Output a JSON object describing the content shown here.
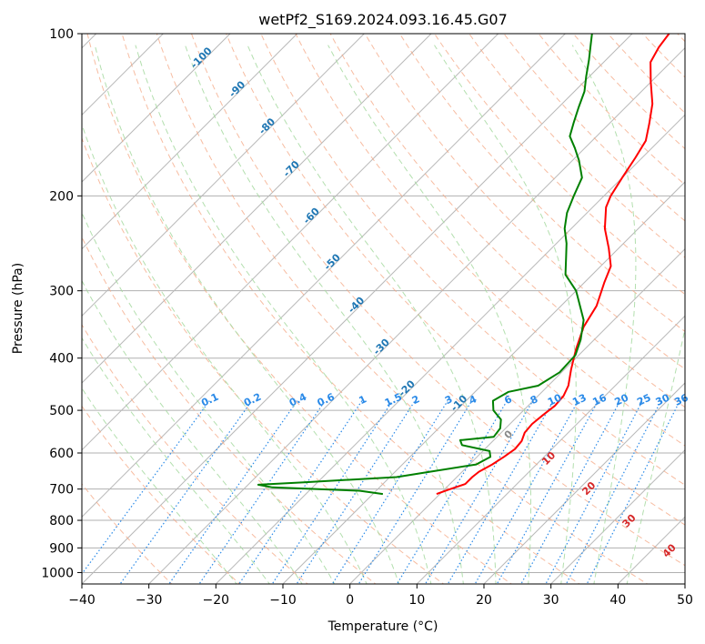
{
  "chart_data": {
    "type": "skew-t log-p",
    "title": "wetPf2_S169.2024.093.16.45.G07",
    "xlabel": "Temperature (°C)",
    "ylabel": "Pressure (hPa)",
    "xlim": [
      -40,
      50
    ],
    "ylim": [
      1050,
      100
    ],
    "y_scale": "log",
    "grid": true,
    "x_ticks": [
      -40,
      -30,
      -20,
      -10,
      0,
      10,
      20,
      30,
      40,
      50
    ],
    "y_ticks": [
      100,
      200,
      300,
      400,
      500,
      600,
      700,
      800,
      900,
      1000
    ],
    "colors": {
      "temperature": "#ff0000",
      "dewpoint": "#008000",
      "isotherm_labels": "#1f77b4",
      "mixing_ratio_labels": "#2a8ae8",
      "wet_bulb_labels": "#d62728",
      "dry_adiabats": "#f4a582",
      "moist_adiabats": "#a6d9a0"
    },
    "series": [
      {
        "name": "Temperature",
        "points": [
          [
            -0.5,
            715
          ],
          [
            0.8,
            700
          ],
          [
            2.3,
            685
          ],
          [
            2.3,
            665
          ],
          [
            2.5,
            650
          ],
          [
            3.4,
            630
          ],
          [
            4.0,
            610
          ],
          [
            4.5,
            590
          ],
          [
            4.3,
            570
          ],
          [
            3.5,
            550
          ],
          [
            3.3,
            530
          ],
          [
            3.6,
            510
          ],
          [
            4.0,
            490
          ],
          [
            3.8,
            470
          ],
          [
            3.0,
            450
          ],
          [
            1.0,
            420
          ],
          [
            -1.3,
            385
          ],
          [
            -3.5,
            350
          ],
          [
            -4.7,
            320
          ],
          [
            -7.0,
            290
          ],
          [
            -8.5,
            270
          ],
          [
            -11.5,
            250
          ],
          [
            -15.0,
            230
          ],
          [
            -18.0,
            210
          ],
          [
            -19.0,
            200
          ],
          [
            -20.0,
            185
          ],
          [
            -21.0,
            170
          ],
          [
            -22.0,
            158
          ],
          [
            -24.0,
            147
          ],
          [
            -26.5,
            135
          ],
          [
            -30.0,
            123
          ],
          [
            -33.0,
            113
          ],
          [
            -34.0,
            106
          ],
          [
            -34.5,
            100
          ]
        ]
      },
      {
        "name": "Dewpoint",
        "points": [
          [
            -8.5,
            715
          ],
          [
            -12.5,
            705
          ],
          [
            -26.0,
            695
          ],
          [
            -28.5,
            687
          ],
          [
            -22.0,
            680
          ],
          [
            -9.0,
            665
          ],
          [
            -4.8,
            650
          ],
          [
            1.0,
            630
          ],
          [
            2.0,
            610
          ],
          [
            1.0,
            595
          ],
          [
            -4.0,
            580
          ],
          [
            -5.0,
            568
          ],
          [
            -0.5,
            560
          ],
          [
            -0.8,
            540
          ],
          [
            -2.0,
            520
          ],
          [
            -4.5,
            500
          ],
          [
            -6.0,
            480
          ],
          [
            -5.0,
            462
          ],
          [
            -1.5,
            450
          ],
          [
            -0.3,
            425
          ],
          [
            -0.5,
            395
          ],
          [
            -2.0,
            370
          ],
          [
            -4.5,
            340
          ],
          [
            -10.0,
            300
          ],
          [
            -14.0,
            280
          ],
          [
            -16.5,
            260
          ],
          [
            -18.5,
            245
          ],
          [
            -21.0,
            230
          ],
          [
            -23.0,
            215
          ],
          [
            -24.5,
            200
          ],
          [
            -26.0,
            185
          ],
          [
            -29.0,
            172
          ],
          [
            -31.5,
            163
          ],
          [
            -34.0,
            155
          ],
          [
            -35.5,
            146
          ],
          [
            -37.0,
            137
          ],
          [
            -38.5,
            128
          ],
          [
            -40.5,
            120
          ],
          [
            -42.5,
            112
          ],
          [
            -44.5,
            105
          ],
          [
            -46.0,
            100
          ]
        ]
      }
    ],
    "isotherm_labels": [
      "-100",
      "-90",
      "-80",
      "-70",
      "-60",
      "-50",
      "-40",
      "-30",
      "-20",
      "-10"
    ],
    "mixing_ratio_labels": [
      "0.1",
      "0.2",
      "0.4",
      "0.6",
      "1",
      "1.5",
      "2",
      "3",
      "4",
      "6",
      "8",
      "10",
      "13",
      "16",
      "20",
      "25",
      "30",
      "36"
    ],
    "wet_bulb_labels": [
      "0",
      "10",
      "20",
      "30",
      "40"
    ]
  }
}
